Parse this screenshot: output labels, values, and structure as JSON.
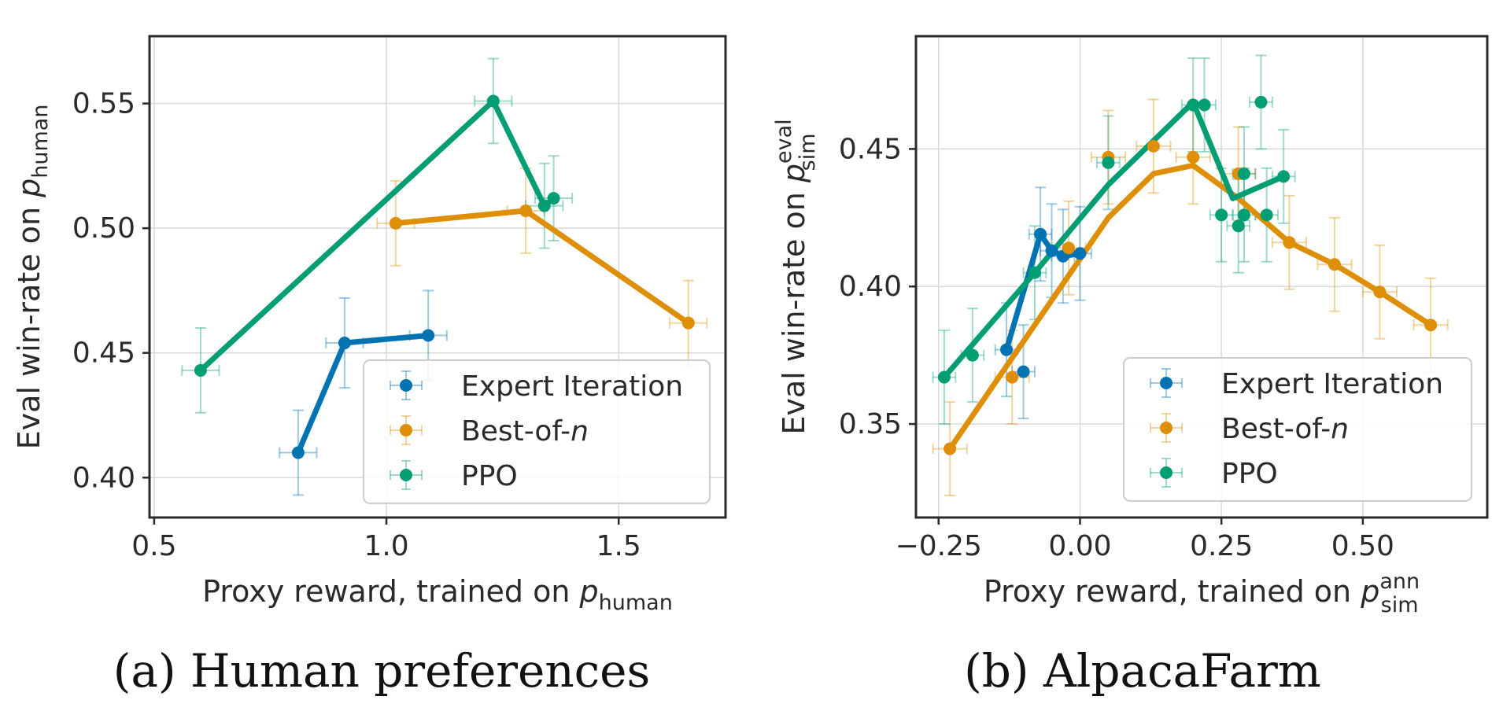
{
  "colors": {
    "expert_iteration": "#0173b2",
    "best_of_n": "#de8f05",
    "ppo": "#029e73",
    "grid": "#d9d9d9",
    "frame": "#2a2a2a"
  },
  "chart_data": [
    {
      "type": "line",
      "caption": "(a) Human preferences",
      "xlabel": "Proxy reward, trained on p_human",
      "xlabel_parts": {
        "main": "Proxy reward, trained on ",
        "var": "p",
        "sub": "human",
        "sup": ""
      },
      "ylabel": "Eval win-rate on p_human",
      "ylabel_parts": {
        "main": "Eval win-rate on ",
        "var": "p",
        "sub": "human",
        "sup": ""
      },
      "xlim": [
        0.49,
        1.73
      ],
      "ylim": [
        0.384,
        0.577
      ],
      "xticks": [
        0.5,
        1.0,
        1.5
      ],
      "xtick_labels": [
        "0.5",
        "1.0",
        "1.5"
      ],
      "yticks": [
        0.4,
        0.45,
        0.5,
        0.55
      ],
      "ytick_labels": [
        "0.40",
        "0.45",
        "0.50",
        "0.55"
      ],
      "grid": true,
      "legend": {
        "position": "lower-right",
        "entries": [
          {
            "key": "expert",
            "text": "Expert Iteration",
            "italic": ""
          },
          {
            "key": "bon",
            "text": "Best-of-",
            "italic": "n"
          },
          {
            "key": "ppo",
            "text": "PPO",
            "italic": ""
          }
        ]
      },
      "series": [
        {
          "name": "Expert Iteration",
          "key": "expert",
          "line": {
            "x": [
              0.81,
              0.91,
              1.09
            ],
            "y": [
              0.41,
              0.454,
              0.457
            ]
          },
          "points": [
            {
              "x": 0.81,
              "y": 0.41,
              "xerr": 0.04,
              "yerr": 0.017
            },
            {
              "x": 0.91,
              "y": 0.454,
              "xerr": 0.04,
              "yerr": 0.018
            },
            {
              "x": 1.09,
              "y": 0.457,
              "xerr": 0.04,
              "yerr": 0.018
            }
          ]
        },
        {
          "name": "Best-of-n",
          "key": "bon",
          "line": {
            "x": [
              1.02,
              1.3,
              1.65
            ],
            "y": [
              0.502,
              0.507,
              0.462
            ]
          },
          "points": [
            {
              "x": 1.02,
              "y": 0.502,
              "xerr": 0.04,
              "yerr": 0.017
            },
            {
              "x": 1.3,
              "y": 0.507,
              "xerr": 0.04,
              "yerr": 0.017
            },
            {
              "x": 1.65,
              "y": 0.462,
              "xerr": 0.04,
              "yerr": 0.017
            }
          ]
        },
        {
          "name": "PPO",
          "key": "ppo",
          "line": {
            "x": [
              0.6,
              1.23,
              1.34,
              1.36
            ],
            "y": [
              0.443,
              0.551,
              0.509,
              0.512
            ]
          },
          "points": [
            {
              "x": 0.6,
              "y": 0.443,
              "xerr": 0.04,
              "yerr": 0.017
            },
            {
              "x": 1.23,
              "y": 0.551,
              "xerr": 0.04,
              "yerr": 0.017
            },
            {
              "x": 1.34,
              "y": 0.509,
              "xerr": 0.04,
              "yerr": 0.017
            },
            {
              "x": 1.36,
              "y": 0.512,
              "xerr": 0.04,
              "yerr": 0.017
            }
          ]
        }
      ]
    },
    {
      "type": "line",
      "caption": "(b) AlpacaFarm",
      "xlabel": "Proxy reward, trained on p_sim^ann",
      "xlabel_parts": {
        "main": "Proxy reward, trained on ",
        "var": "p",
        "sub": "sim",
        "sup": "ann"
      },
      "ylabel": "Eval win-rate on p_sim^eval",
      "ylabel_parts": {
        "main": "Eval win-rate on ",
        "var": "p",
        "sub": "sim",
        "sup": "eval"
      },
      "xlim": [
        -0.29,
        0.72
      ],
      "ylim": [
        0.316,
        0.491
      ],
      "xticks": [
        -0.25,
        0.0,
        0.25,
        0.5
      ],
      "xtick_labels": [
        "−0.25",
        "0.00",
        "0.25",
        "0.50"
      ],
      "yticks": [
        0.35,
        0.4,
        0.45
      ],
      "ytick_labels": [
        "0.35",
        "0.40",
        "0.45"
      ],
      "grid": true,
      "legend": {
        "position": "lower-right",
        "entries": [
          {
            "key": "expert",
            "text": "Expert Iteration",
            "italic": ""
          },
          {
            "key": "bon",
            "text": "Best-of-",
            "italic": "n"
          },
          {
            "key": "ppo",
            "text": "PPO",
            "italic": ""
          }
        ]
      },
      "series": [
        {
          "name": "Expert Iteration",
          "key": "expert",
          "line": {
            "x": [
              -0.13,
              -0.07,
              -0.05,
              -0.03,
              0.0
            ],
            "y": [
              0.377,
              0.419,
              0.413,
              0.411,
              0.412
            ]
          },
          "points": [
            {
              "x": -0.13,
              "y": 0.377,
              "xerr": 0.02,
              "yerr": 0.017
            },
            {
              "x": -0.07,
              "y": 0.419,
              "xerr": 0.02,
              "yerr": 0.017
            },
            {
              "x": -0.05,
              "y": 0.413,
              "xerr": 0.02,
              "yerr": 0.017
            },
            {
              "x": -0.03,
              "y": 0.411,
              "xerr": 0.02,
              "yerr": 0.017
            },
            {
              "x": 0.0,
              "y": 0.412,
              "xerr": 0.02,
              "yerr": 0.017
            },
            {
              "x": -0.1,
              "y": 0.369,
              "xerr": 0.02,
              "yerr": 0.017
            }
          ]
        },
        {
          "name": "Best-of-n",
          "key": "bon",
          "line": {
            "x": [
              -0.23,
              -0.07,
              0.05,
              0.13,
              0.2,
              0.28,
              0.37,
              0.45,
              0.53,
              0.62
            ],
            "y": [
              0.341,
              0.389,
              0.425,
              0.441,
              0.444,
              0.432,
              0.416,
              0.408,
              0.398,
              0.386
            ]
          },
          "points": [
            {
              "x": -0.23,
              "y": 0.341,
              "xerr": 0.03,
              "yerr": 0.017
            },
            {
              "x": -0.12,
              "y": 0.367,
              "xerr": 0.03,
              "yerr": 0.017
            },
            {
              "x": -0.02,
              "y": 0.414,
              "xerr": 0.03,
              "yerr": 0.017
            },
            {
              "x": 0.05,
              "y": 0.447,
              "xerr": 0.03,
              "yerr": 0.017
            },
            {
              "x": 0.13,
              "y": 0.451,
              "xerr": 0.03,
              "yerr": 0.017
            },
            {
              "x": 0.2,
              "y": 0.447,
              "xerr": 0.03,
              "yerr": 0.017
            },
            {
              "x": 0.28,
              "y": 0.441,
              "xerr": 0.03,
              "yerr": 0.017
            },
            {
              "x": 0.37,
              "y": 0.416,
              "xerr": 0.03,
              "yerr": 0.017
            },
            {
              "x": 0.45,
              "y": 0.408,
              "xerr": 0.03,
              "yerr": 0.017
            },
            {
              "x": 0.53,
              "y": 0.398,
              "xerr": 0.03,
              "yerr": 0.017
            },
            {
              "x": 0.62,
              "y": 0.386,
              "xerr": 0.03,
              "yerr": 0.017
            }
          ]
        },
        {
          "name": "PPO",
          "key": "ppo",
          "line": {
            "x": [
              -0.24,
              -0.08,
              0.05,
              0.2,
              0.27,
              0.36
            ],
            "y": [
              0.367,
              0.405,
              0.437,
              0.467,
              0.432,
              0.44
            ]
          },
          "points": [
            {
              "x": -0.24,
              "y": 0.367,
              "xerr": 0.02,
              "yerr": 0.017
            },
            {
              "x": -0.19,
              "y": 0.375,
              "xerr": 0.02,
              "yerr": 0.017
            },
            {
              "x": -0.08,
              "y": 0.405,
              "xerr": 0.02,
              "yerr": 0.017
            },
            {
              "x": 0.05,
              "y": 0.445,
              "xerr": 0.02,
              "yerr": 0.017
            },
            {
              "x": 0.2,
              "y": 0.466,
              "xerr": 0.02,
              "yerr": 0.017
            },
            {
              "x": 0.22,
              "y": 0.466,
              "xerr": 0.02,
              "yerr": 0.017
            },
            {
              "x": 0.25,
              "y": 0.426,
              "xerr": 0.02,
              "yerr": 0.017
            },
            {
              "x": 0.28,
              "y": 0.422,
              "xerr": 0.02,
              "yerr": 0.017
            },
            {
              "x": 0.29,
              "y": 0.426,
              "xerr": 0.02,
              "yerr": 0.017
            },
            {
              "x": 0.29,
              "y": 0.441,
              "xerr": 0.02,
              "yerr": 0.017
            },
            {
              "x": 0.32,
              "y": 0.467,
              "xerr": 0.02,
              "yerr": 0.017
            },
            {
              "x": 0.33,
              "y": 0.426,
              "xerr": 0.02,
              "yerr": 0.017
            },
            {
              "x": 0.36,
              "y": 0.44,
              "xerr": 0.02,
              "yerr": 0.017
            }
          ]
        }
      ]
    }
  ]
}
